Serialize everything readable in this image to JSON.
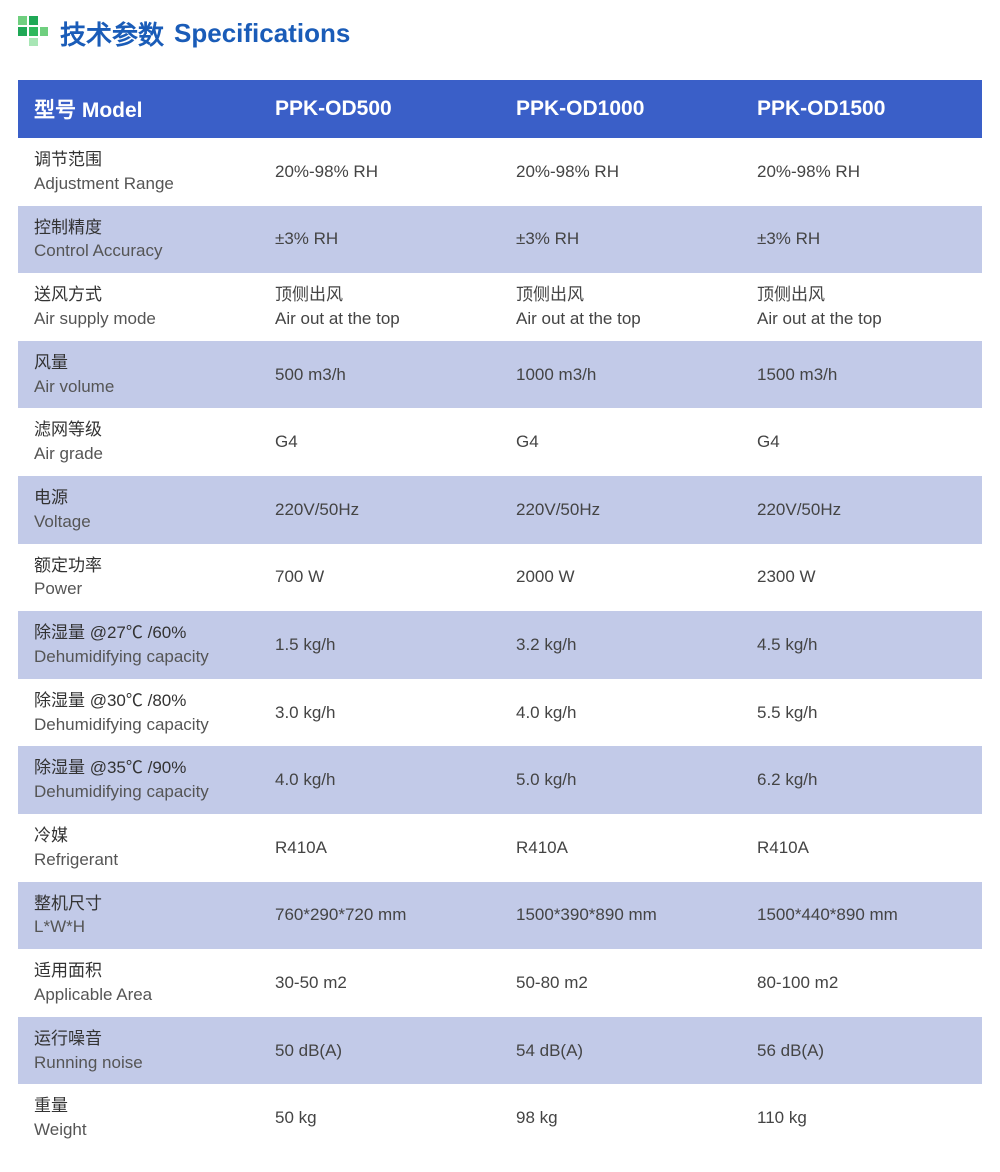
{
  "title": {
    "cn": "技术参数",
    "en": "Specifications",
    "icon_colors": {
      "g1": "#1fa856",
      "g2": "#2eb85c",
      "g3": "#6fcf7f",
      "g4": "#a8e6b5"
    }
  },
  "header": {
    "label": "型号 Model",
    "model1": "PPK-OD500",
    "model2": "PPK-OD1000",
    "model3": "PPK-OD1500",
    "bg_color": "#3a5fc8",
    "text_color": "#ffffff",
    "font_size": 21
  },
  "table": {
    "even_row_bg": "#c2cae8",
    "odd_row_bg": "#ffffff",
    "text_color": "#333333",
    "font_size": 17
  },
  "rows": [
    {
      "label_cn": "调节范围",
      "label_en": "Adjustment Range",
      "v1": "20%-98% RH",
      "v2": "20%-98% RH",
      "v3": "20%-98% RH"
    },
    {
      "label_cn": "控制精度",
      "label_en": "Control Accuracy",
      "v1": "±3% RH",
      "v2": "±3% RH",
      "v3": "±3% RH"
    },
    {
      "label_cn": "送风方式",
      "label_en": "Air supply mode",
      "v1_cn": "顶侧出风",
      "v1_en": "Air out at the top",
      "v2_cn": "顶侧出风",
      "v2_en": "Air out at the top",
      "v3_cn": "顶侧出风",
      "v3_en": "Air out at the top",
      "two_line": true
    },
    {
      "label_cn": "风量",
      "label_en": "Air volume",
      "v1": "500 m3/h",
      "v2": "1000 m3/h",
      "v3": "1500 m3/h"
    },
    {
      "label_cn": "滤网等级",
      "label_en": "Air grade",
      "v1": "G4",
      "v2": "G4",
      "v3": "G4"
    },
    {
      "label_cn": "电源",
      "label_en": "Voltage",
      "v1": "220V/50Hz",
      "v2": "220V/50Hz",
      "v3": "220V/50Hz"
    },
    {
      "label_cn": "额定功率",
      "label_en": "Power",
      "v1": "700 W",
      "v2": "2000 W",
      "v3": "2300 W"
    },
    {
      "label_cn": "除湿量 @27℃ /60%",
      "label_en": "Dehumidifying capacity",
      "v1": "1.5 kg/h",
      "v2": "3.2 kg/h",
      "v3": "4.5 kg/h"
    },
    {
      "label_cn": "除湿量 @30℃ /80%",
      "label_en": "Dehumidifying capacity",
      "v1": "3.0 kg/h",
      "v2": "4.0 kg/h",
      "v3": "5.5 kg/h"
    },
    {
      "label_cn": "除湿量 @35℃ /90%",
      "label_en": "Dehumidifying capacity",
      "v1": "4.0 kg/h",
      "v2": "5.0 kg/h",
      "v3": "6.2 kg/h"
    },
    {
      "label_cn": "冷媒",
      "label_en": "Refrigerant",
      "v1": "R410A",
      "v2": "R410A",
      "v3": "R410A"
    },
    {
      "label_cn": "整机尺寸",
      "label_en": "L*W*H",
      "v1": "760*290*720 mm",
      "v2": "1500*390*890 mm",
      "v3": "1500*440*890 mm"
    },
    {
      "label_cn": "适用面积",
      "label_en": "Applicable Area",
      "v1": "30-50 m2",
      "v2": "50-80 m2",
      "v3": "80-100 m2"
    },
    {
      "label_cn": "运行噪音",
      "label_en": "Running noise",
      "v1": "50 dB(A)",
      "v2": "54 dB(A)",
      "v3": "56 dB(A)"
    },
    {
      "label_cn": "重量",
      "label_en": "Weight",
      "v1": "50 kg",
      "v2": "98 kg",
      "v3": "110 kg"
    }
  ]
}
